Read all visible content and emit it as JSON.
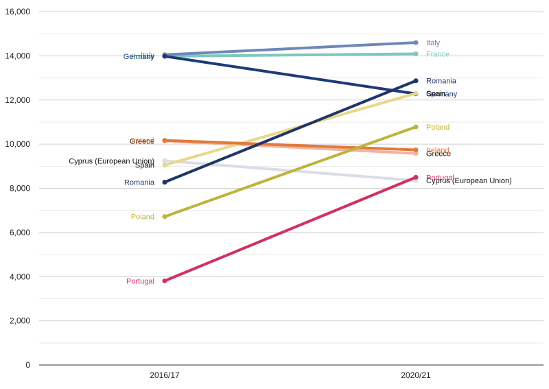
{
  "chart_data": {
    "type": "line",
    "categories": [
      "2016/17",
      "2020/21"
    ],
    "ylim": [
      0,
      16000
    ],
    "y_ticks": [
      "0",
      "2,000",
      "4,000",
      "6,000",
      "8,000",
      "10,000",
      "12,000",
      "14,000",
      "16,000"
    ],
    "grid": true,
    "series": [
      {
        "name": "Cyprus (European Union)",
        "values": [
          9250,
          8350
        ],
        "color": "#dcdce8",
        "text_color": "#111111"
      },
      {
        "name": "Greece",
        "values": [
          10150,
          9580
        ],
        "color": "#f2b3a0",
        "text_color": "#111111"
      },
      {
        "name": "France",
        "values": [
          13980,
          14090
        ],
        "color": "#7fc8bd",
        "text_color": "#7fc8bd"
      },
      {
        "name": "Italy",
        "values": [
          14050,
          14600
        ],
        "color": "#6f87b8",
        "text_color": "#6f87b8"
      },
      {
        "name": "Germany",
        "values": [
          13980,
          12280
        ],
        "color": "#1e3a78",
        "text_color": "#1e3a78"
      },
      {
        "name": "Spain",
        "values": [
          9050,
          12300
        ],
        "color": "#e8d88a",
        "text_color": "#111111"
      },
      {
        "name": "Ireland",
        "values": [
          10170,
          9740
        ],
        "color": "#e07a3c",
        "text_color": "#e07a3c"
      },
      {
        "name": "Poland",
        "values": [
          6720,
          10780
        ],
        "color": "#bcb53a",
        "text_color": "#bcb53a"
      },
      {
        "name": "Romania",
        "values": [
          8280,
          12870
        ],
        "color": "#1f3568",
        "text_color": "#1f3568"
      },
      {
        "name": "Portugal",
        "values": [
          3810,
          8500
        ],
        "color": "#d0325f",
        "text_color": "#d0325f"
      }
    ]
  }
}
